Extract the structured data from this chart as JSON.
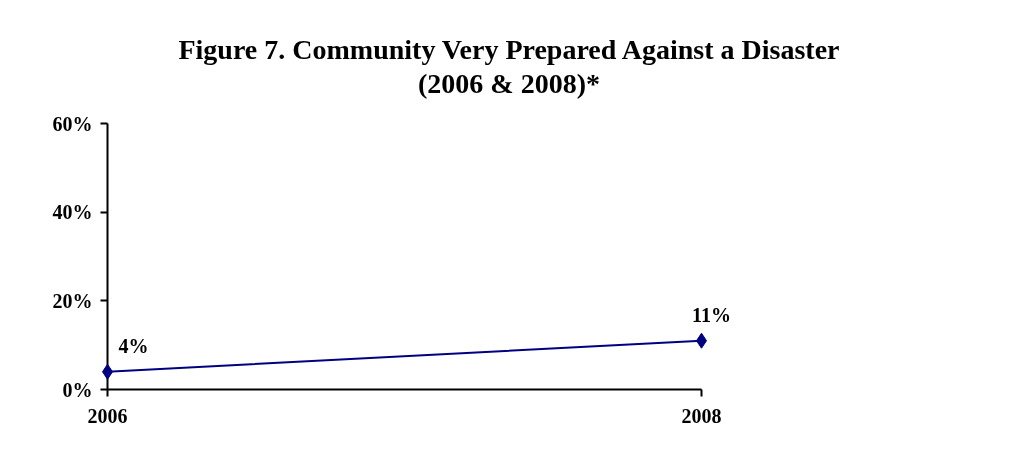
{
  "chart_data": {
    "type": "line",
    "title": "Figure 7. Community Very Prepared Against a Disaster\n(2006 & 2008)*",
    "categories": [
      "2006",
      "2008"
    ],
    "series": [
      {
        "color": "#000080",
        "values": [
          4,
          11
        ],
        "value_labels": [
          "4%",
          "11%"
        ]
      }
    ],
    "ylim": [
      0,
      60
    ],
    "yticks": [
      {
        "value": 0,
        "label": "0%"
      },
      {
        "value": 20,
        "label": "20%"
      },
      {
        "value": 40,
        "label": "40%"
      },
      {
        "value": 60,
        "label": "60%"
      }
    ],
    "marker": "diamond",
    "line_style": "solid"
  }
}
